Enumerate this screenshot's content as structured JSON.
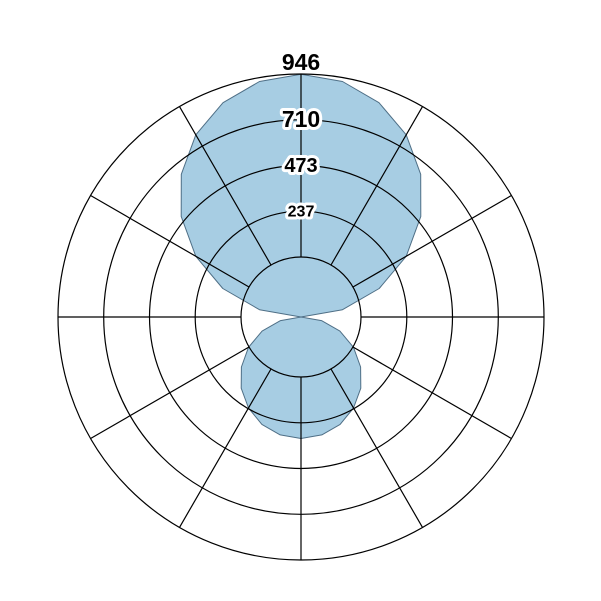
{
  "chart_data": {
    "type": "polar-area",
    "title": "",
    "radial_axis": {
      "min": 0,
      "max": 946,
      "tick_values": [
        237,
        473,
        710,
        946
      ],
      "tick_labels": [
        "237",
        "473",
        "710",
        "946"
      ]
    },
    "angular_axis": {
      "spokes": 12,
      "step_degrees": 30,
      "zero_direction": "top",
      "direction": "clockwise"
    },
    "grid": true,
    "series": [
      {
        "fill_color": "#a7cde3",
        "edge_color": "#4f6f86",
        "angle_deg": [
          0,
          10,
          20,
          30,
          40,
          50,
          60,
          70,
          80,
          90,
          100,
          110,
          120,
          130,
          140,
          150,
          160,
          170,
          180,
          190,
          200,
          210,
          220,
          230,
          240,
          250,
          260,
          270,
          280,
          290,
          300,
          310,
          320,
          330,
          340,
          350
        ],
        "r": [
          945,
          931,
          888,
          819,
          725,
          609,
          473,
          324,
          164,
          0,
          81,
          161,
          236,
          303,
          362,
          409,
          445,
          466,
          473,
          466,
          445,
          409,
          362,
          303,
          236,
          161,
          81,
          0,
          164,
          324,
          473,
          609,
          725,
          819,
          888,
          931
        ]
      }
    ]
  }
}
